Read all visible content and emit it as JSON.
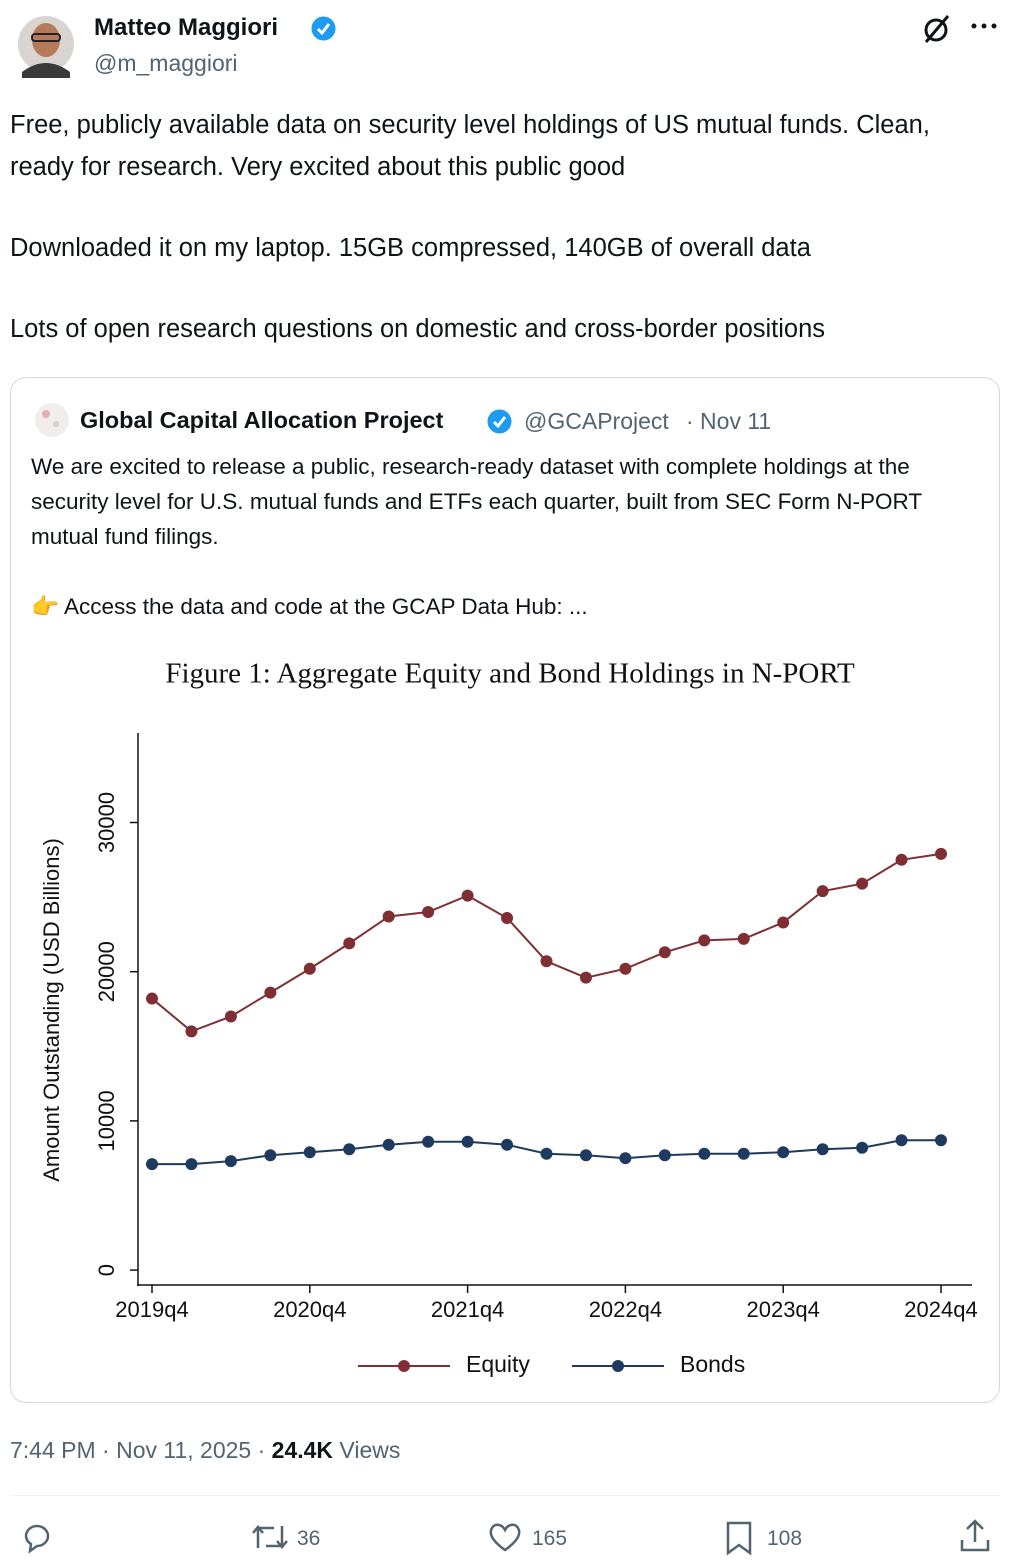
{
  "author": {
    "name": "Matteo Maggiori",
    "handle": "@m_maggiori"
  },
  "text": [
    "Free, publicly available data on security level holdings of US mutual funds. Clean, ready for research. Very excited about this public good",
    "Downloaded it on my laptop. 15GB compressed, 140GB of overall data",
    "Lots of open research questions on domestic and cross-border positions"
  ],
  "quote": {
    "name": "Global Capital Allocation Project",
    "handle": "@GCAProject",
    "date": "· Nov 11",
    "text": "We are excited to release a public, research-ready dataset with complete holdings at the security level for U.S. mutual funds and ETFs each quarter, built from SEC Form N-PORT mutual fund filings.",
    "link_text": "👉 Access the data and code at the GCAP Data Hub: ..."
  },
  "chart_data": {
    "type": "line",
    "title": "Figure 1: Aggregate Equity and Bond Holdings in N-PORT",
    "y_label": "Amount Outstanding (USD Billions)",
    "categories": [
      "2019q4",
      null,
      null,
      null,
      "2020q4",
      null,
      null,
      null,
      "2021q4",
      null,
      null,
      null,
      "2022q4",
      null,
      null,
      null,
      "2023q4",
      null,
      null,
      null,
      "2024q4"
    ],
    "series": [
      {
        "name": "Equity",
        "color": "#7f2f33",
        "values": [
          18200,
          16000,
          17000,
          18600,
          20200,
          21900,
          23700,
          24000,
          25100,
          23600,
          20700,
          19600,
          20200,
          21300,
          22100,
          22200,
          23300,
          25400,
          25900,
          27500,
          27900
        ]
      },
      {
        "name": "Bonds",
        "color": "#1f3a5f",
        "values": [
          7100,
          7100,
          7300,
          7700,
          7900,
          8100,
          8400,
          8600,
          8600,
          8400,
          7800,
          7700,
          7500,
          7700,
          7800,
          7800,
          7900,
          8100,
          8200,
          8700,
          8700
        ]
      }
    ],
    "ylim": [
      -1000,
      36000
    ],
    "yticks": [
      0,
      10000,
      20000,
      30000
    ],
    "grid": false,
    "legend": "bottom"
  },
  "meta": {
    "time": "7:44 PM · Nov 11, 2025 ·",
    "views": "24.4K",
    "views_label": "Views"
  },
  "actions": {
    "retweets": 36,
    "likes": 165,
    "bookmarks": 108
  }
}
